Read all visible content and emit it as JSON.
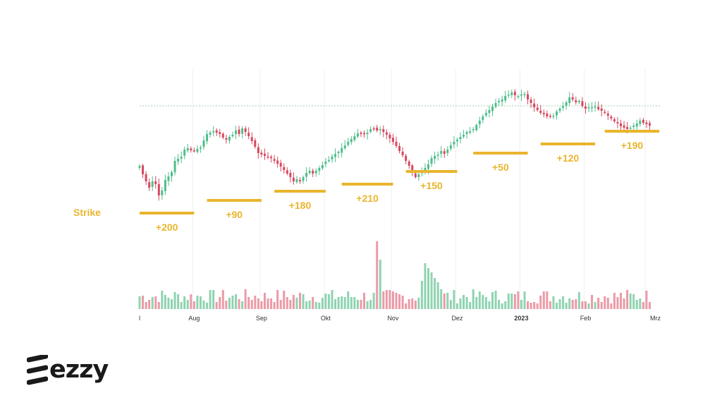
{
  "chart_data": {
    "type": "candlestick",
    "price_line": 150,
    "x_axis_labels": [
      {
        "label": "l",
        "index": 0,
        "bold": false
      },
      {
        "label": "Aug",
        "index": 17,
        "bold": false
      },
      {
        "label": "Sep",
        "index": 38,
        "bold": false
      },
      {
        "label": "Okt",
        "index": 58,
        "bold": false
      },
      {
        "label": "Nov",
        "index": 79,
        "bold": false
      },
      {
        "label": "Dez",
        "index": 99,
        "bold": false
      },
      {
        "label": "2023",
        "index": 119,
        "bold": true
      },
      {
        "label": "Feb",
        "index": 139,
        "bold": false
      },
      {
        "label": "Mrz",
        "index": 158,
        "bold": false
      }
    ],
    "strike_label": "Strike",
    "strikes": [
      {
        "label": "+200",
        "start": 0,
        "end": 17,
        "level": 302
      },
      {
        "label": "+90",
        "start": 21,
        "end": 38,
        "level": 284
      },
      {
        "label": "+180",
        "start": 42,
        "end": 58,
        "level": 271
      },
      {
        "label": "+210",
        "start": 63,
        "end": 79,
        "level": 261
      },
      {
        "label": "+150",
        "start": 83,
        "end": 99,
        "level": 243
      },
      {
        "label": "+50",
        "start": 104,
        "end": 121,
        "level": 217
      },
      {
        "label": "+120",
        "start": 125,
        "end": 142,
        "level": 204
      },
      {
        "label": "+190",
        "start": 145,
        "end": 162,
        "level": 186
      }
    ],
    "close": [
      235,
      247,
      257,
      266,
      257,
      261,
      277,
      270,
      255,
      250,
      244,
      228,
      225,
      222,
      212,
      210,
      213,
      214,
      211,
      209,
      199,
      190,
      188,
      186,
      188,
      190,
      195,
      198,
      194,
      191,
      185,
      190,
      182,
      187,
      193,
      200,
      208,
      217,
      219,
      221,
      222,
      224,
      228,
      232,
      236,
      241,
      246,
      251,
      257,
      254,
      257,
      251,
      245,
      242,
      246,
      242,
      238,
      234,
      229,
      227,
      222,
      218,
      215,
      210,
      206,
      201,
      197,
      193,
      189,
      190,
      190,
      188,
      183,
      182,
      185,
      183,
      187,
      191,
      196,
      201,
      207,
      214,
      220,
      228,
      235,
      245,
      251,
      247,
      244,
      238,
      233,
      224,
      221,
      219,
      214,
      218,
      212,
      206,
      201,
      198,
      194,
      191,
      187,
      186,
      183,
      177,
      171,
      165,
      160,
      156,
      151,
      146,
      143,
      141,
      136,
      134,
      131,
      135,
      136,
      134,
      133,
      141,
      146,
      152,
      156,
      160,
      162,
      165,
      165,
      164,
      158,
      154,
      150,
      145,
      138,
      141,
      145,
      143,
      150,
      154,
      152,
      152,
      151,
      155,
      157,
      160,
      164,
      168,
      172,
      175,
      179,
      181,
      183,
      181,
      178,
      175,
      171,
      174,
      176,
      178
    ],
    "colors": {
      "up": "#4fbe8a",
      "down": "#d9475f",
      "up_volume": "#8fd3b0",
      "down_volume": "#eb9aa7",
      "strike": "#e9b52d",
      "grid": "#efefef",
      "price_line": "#9dd3b2"
    },
    "logo": {
      "text": "ezzy",
      "icon": "ezzy-logo-icon"
    }
  }
}
